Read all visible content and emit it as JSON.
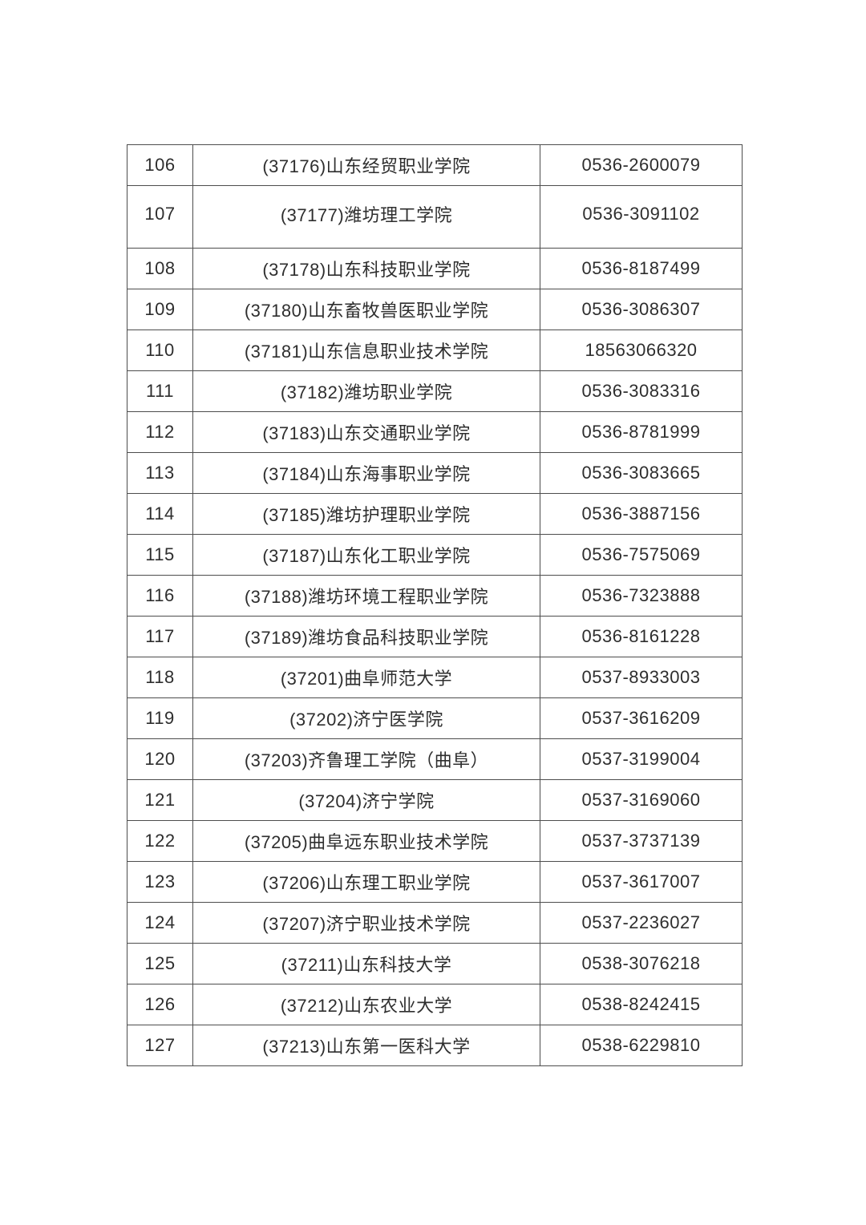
{
  "colors": {
    "page_background": "#ffffff",
    "grid_border": "#4d4d4d",
    "text": "#2e2e2e"
  },
  "table": {
    "rows": [
      {
        "no": "106",
        "name": "(37176)山东经贸职业学院",
        "phone": "0536-2600079"
      },
      {
        "no": "107",
        "name": "(37177)潍坊理工学院",
        "phone": "0536-3091102"
      },
      {
        "no": "108",
        "name": "(37178)山东科技职业学院",
        "phone": "0536-8187499"
      },
      {
        "no": "109",
        "name": "(37180)山东畜牧兽医职业学院",
        "phone": "0536-3086307"
      },
      {
        "no": "110",
        "name": "(37181)山东信息职业技术学院",
        "phone": "18563066320"
      },
      {
        "no": "111",
        "name": "(37182)潍坊职业学院",
        "phone": "0536-3083316"
      },
      {
        "no": "112",
        "name": "(37183)山东交通职业学院",
        "phone": "0536-8781999"
      },
      {
        "no": "113",
        "name": "(37184)山东海事职业学院",
        "phone": "0536-3083665"
      },
      {
        "no": "114",
        "name": "(37185)潍坊护理职业学院",
        "phone": "0536-3887156"
      },
      {
        "no": "115",
        "name": "(37187)山东化工职业学院",
        "phone": "0536-7575069"
      },
      {
        "no": "116",
        "name": "(37188)潍坊环境工程职业学院",
        "phone": "0536-7323888"
      },
      {
        "no": "117",
        "name": "(37189)潍坊食品科技职业学院",
        "phone": "0536-8161228"
      },
      {
        "no": "118",
        "name": "(37201)曲阜师范大学",
        "phone": "0537-8933003"
      },
      {
        "no": "119",
        "name": "(37202)济宁医学院",
        "phone": "0537-3616209"
      },
      {
        "no": "120",
        "name": "(37203)齐鲁理工学院（曲阜）",
        "phone": "0537-3199004"
      },
      {
        "no": "121",
        "name": "(37204)济宁学院",
        "phone": "0537-3169060"
      },
      {
        "no": "122",
        "name": "(37205)曲阜远东职业技术学院",
        "phone": "0537-3737139"
      },
      {
        "no": "123",
        "name": "(37206)山东理工职业学院",
        "phone": "0537-3617007"
      },
      {
        "no": "124",
        "name": "(37207)济宁职业技术学院",
        "phone": "0537-2236027"
      },
      {
        "no": "125",
        "name": "(37211)山东科技大学",
        "phone": "0538-3076218"
      },
      {
        "no": "126",
        "name": "(37212)山东农业大学",
        "phone": "0538-8242415"
      },
      {
        "no": "127",
        "name": "(37213)山东第一医科大学",
        "phone": "0538-6229810"
      }
    ]
  }
}
